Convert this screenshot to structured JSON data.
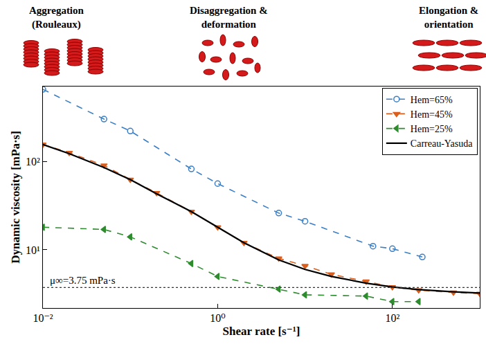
{
  "chart_data": {
    "type": "line",
    "log": true,
    "grid": false,
    "legend": "top-right",
    "xlabel": "Shear rate [s⁻¹]",
    "ylabel": "Dynamic viscosity [mPa·s]",
    "xlim": [
      0.01,
      1000
    ],
    "ylim": [
      2.2,
      700
    ],
    "xticks": [
      {
        "value": 0.01,
        "label": "10⁻²"
      },
      {
        "value": 1,
        "label": "10⁰"
      },
      {
        "value": 100,
        "label": "10²"
      }
    ],
    "yticks": [
      {
        "value": 10,
        "label": "10¹"
      },
      {
        "value": 100,
        "label": "10²"
      }
    ],
    "series": [
      {
        "name": "Hem=65%",
        "color": "#3a7fc6",
        "marker": "circle-open",
        "line_style": "dash",
        "x": [
          0.01,
          0.05,
          0.1,
          0.5,
          1,
          5,
          10,
          60,
          100,
          220
        ],
        "values": [
          650,
          300,
          220,
          82,
          56,
          26,
          21,
          11,
          10.3,
          8.3
        ]
      },
      {
        "name": "Hem=45%",
        "color": "#d95f1e",
        "marker": "triangle-down",
        "line_style": "dash",
        "x": [
          0.01,
          0.02,
          0.05,
          0.1,
          0.2,
          0.5,
          1,
          2,
          5,
          10,
          20,
          50,
          100,
          200,
          500,
          1000
        ],
        "values": [
          155,
          125,
          90,
          62,
          44,
          27,
          18,
          12,
          8,
          6.6,
          5.3,
          4.4,
          3.8,
          3.5,
          3.3,
          3.2
        ]
      },
      {
        "name": "Hem=25%",
        "color": "#2e8b2e",
        "marker": "triangle-left",
        "line_style": "dash",
        "x": [
          0.01,
          0.05,
          0.1,
          0.5,
          1,
          5,
          10,
          50,
          100,
          200
        ],
        "values": [
          18,
          17,
          14,
          7,
          5,
          3.6,
          3.1,
          3.0,
          2.6,
          2.6
        ]
      },
      {
        "name": "Carreau-Yasuda",
        "color": "#000000",
        "marker": "none",
        "line_style": "solid",
        "x": [
          0.01,
          0.02,
          0.05,
          0.1,
          0.2,
          0.5,
          1,
          2,
          5,
          10,
          20,
          50,
          100,
          200,
          500,
          1000
        ],
        "values": [
          155,
          122,
          85,
          62,
          43,
          27,
          18,
          12,
          7.7,
          6.0,
          5.0,
          4.2,
          3.8,
          3.55,
          3.35,
          3.25
        ]
      }
    ],
    "reference_line": {
      "value": 3.75,
      "label": "μ∞=3.75 mPa·s",
      "line_style": "dot"
    },
    "annotations": [
      "Aggregation (Rouleaux)",
      "Disaggregation & deformation",
      "Elongation & orientation"
    ]
  }
}
